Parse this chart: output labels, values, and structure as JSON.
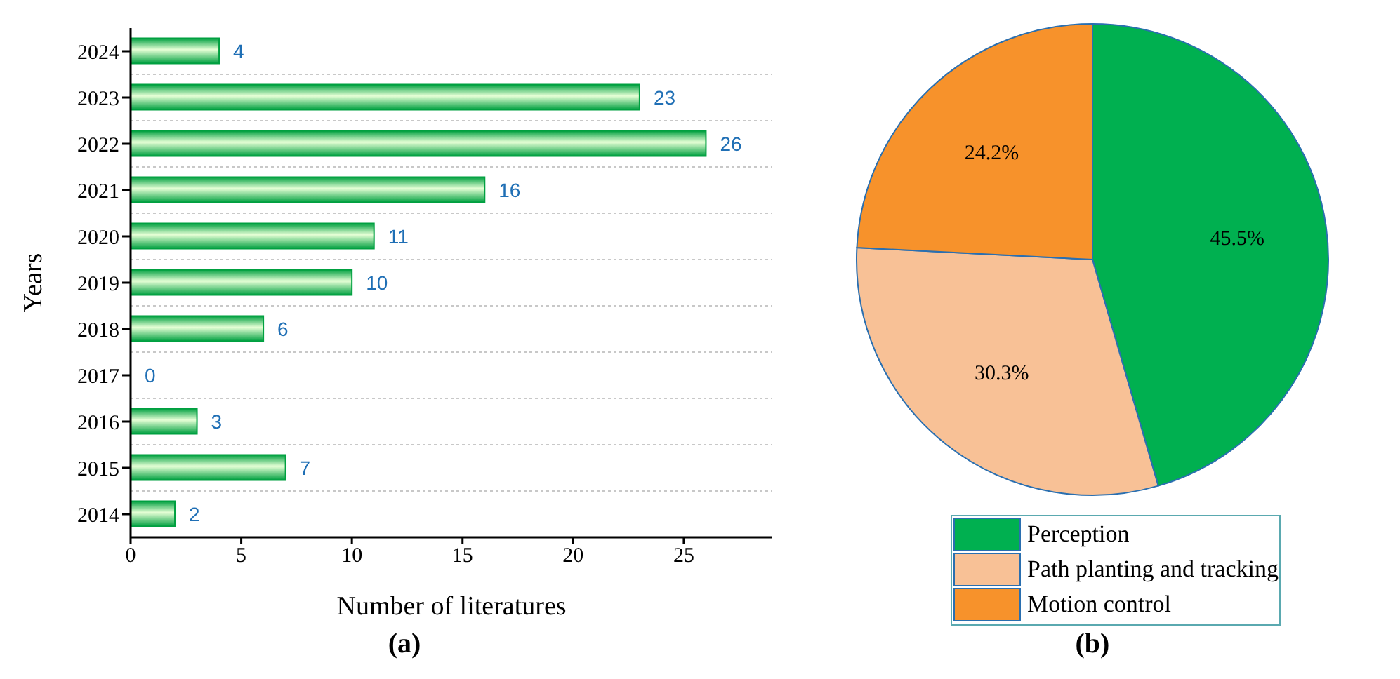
{
  "chart_data": [
    {
      "type": "bar",
      "orientation": "horizontal",
      "xlabel": "Number of literatures",
      "ylabel": "Years",
      "categories": [
        "2024",
        "2023",
        "2022",
        "2021",
        "2020",
        "2019",
        "2018",
        "2017",
        "2016",
        "2015",
        "2014"
      ],
      "values": [
        4,
        23,
        26,
        16,
        11,
        10,
        6,
        0,
        3,
        7,
        2
      ],
      "color": "#00a040",
      "xlim": [
        0,
        29
      ],
      "xticks": [
        0,
        5,
        10,
        15,
        20,
        25
      ],
      "grid": "y",
      "data_labels": true,
      "annotations": [
        "(a)"
      ]
    },
    {
      "type": "pie",
      "categories": [
        "Perception",
        "Path planting and tracking",
        "Motion control"
      ],
      "values": [
        45.5,
        30.3,
        24.2
      ],
      "value_labels": [
        "45.5%",
        "30.3%",
        "24.2%"
      ],
      "data_labels": true,
      "colors": [
        "#00b050",
        "#f8c196",
        "#f7922b"
      ],
      "legend": "bottom",
      "annotations": [
        "(b)"
      ]
    }
  ]
}
